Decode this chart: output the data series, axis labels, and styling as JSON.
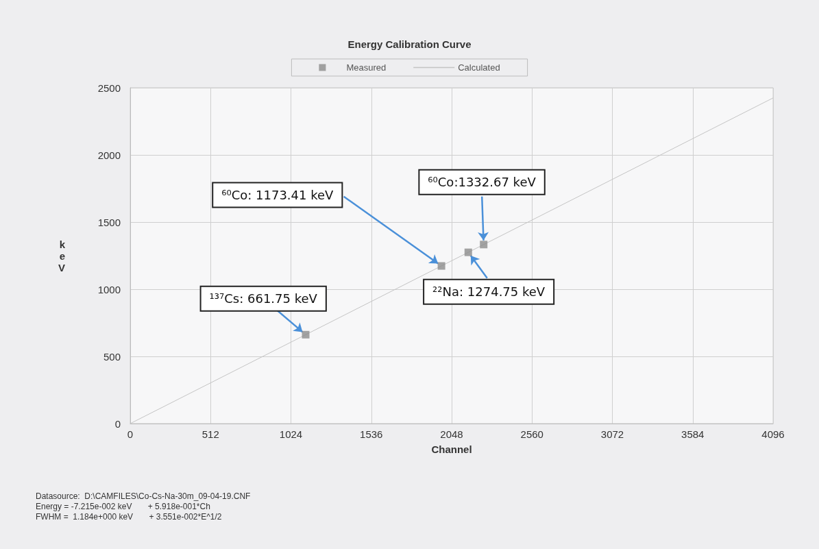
{
  "chart_data": {
    "type": "scatter",
    "title": "Energy Calibration Curve",
    "xlabel": "Channel",
    "ylabel": "keV",
    "xlim": [
      0,
      4096
    ],
    "xticks": [
      0,
      512,
      1024,
      1536,
      2048,
      2560,
      3072,
      3584,
      4096
    ],
    "ylim": [
      0,
      2500
    ],
    "yticks": [
      0,
      500,
      1000,
      1500,
      2000,
      2500
    ],
    "grid": true,
    "legend": "top",
    "series": [
      {
        "name": "Measured",
        "type": "scatter",
        "marker": "square",
        "color": "#8c8c8c",
        "x": [
          1118,
          1983,
          2154,
          2252
        ],
        "values": [
          661.75,
          1173.41,
          1274.75,
          1332.67
        ]
      },
      {
        "name": "Calculated",
        "type": "line",
        "marker": "none",
        "color": "#c4c4c4",
        "x": [
          0,
          4096
        ],
        "values": [
          0,
          2424
        ]
      }
    ],
    "annotations": [
      {
        "text": "¹³⁷Cs: 661.75 keV",
        "x": 1118,
        "y": 661.75
      },
      {
        "text": "⁶⁰Co: 1173.41 keV",
        "x": 1983,
        "y": 1173.41
      },
      {
        "text": "²²Na: 1274.75 keV",
        "x": 2154,
        "y": 1274.75
      },
      {
        "text": "⁶⁰Co:1332.67 keV",
        "x": 2252,
        "y": 1332.67
      },
      "Datasource:  D:\\CAMFILES\\Co-Cs-Na-30m_09-04-19.CNF",
      "Energy = -7.215e-002 keV       + 5.918e-001*Ch",
      "FWHM =  1.184e+000 keV       + 3.551e-002*E^1/2"
    ]
  }
}
